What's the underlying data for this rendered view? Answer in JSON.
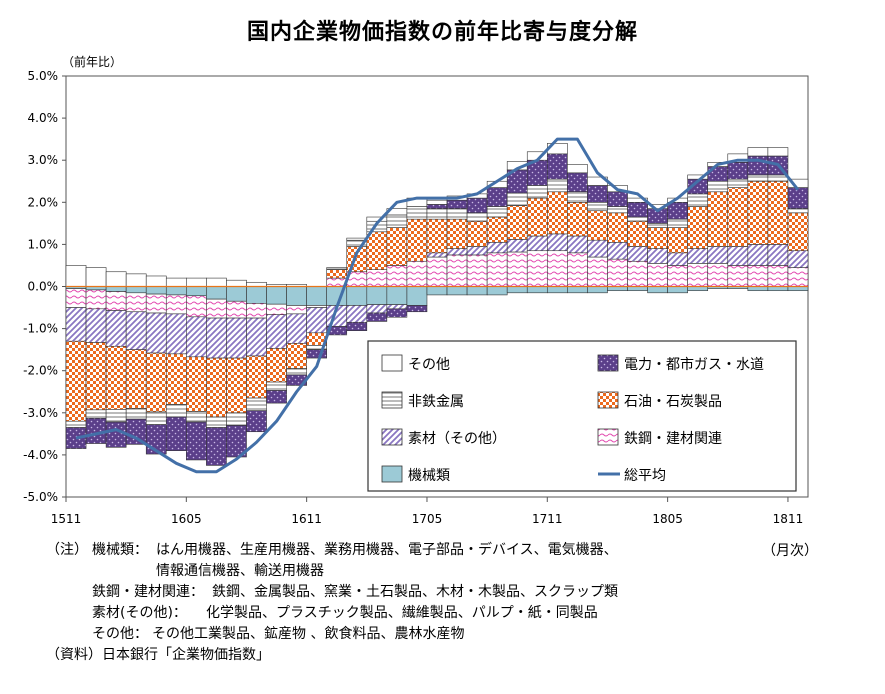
{
  "title": "国内企業物価指数の前年比寄与度分解",
  "colors": {
    "machinery": "#9ccad6",
    "steel_bg": "#ffffff",
    "steel_fg": "#e34ab0",
    "materials_bg": "#ffffff",
    "materials_fg": "#8a76c2",
    "oil_bg": "#ffffff",
    "oil_fg": "#ec6a1e",
    "nonferrous_bg": "#ffffff",
    "nonferrous_fg": "#777777",
    "electric_bg": "#5b3f8a",
    "electric_fg": "#c9b8e6",
    "other": "#ffffff",
    "total_line": "#4370a8"
  },
  "chart_data": {
    "type": "bar",
    "stacked": true,
    "ylabel": "（前年比）",
    "xlabel": "（月次）",
    "ylim": [
      -5.0,
      5.0
    ],
    "yticks": [
      "5.0%",
      "4.0%",
      "3.0%",
      "2.0%",
      "1.0%",
      "0.0%",
      "-1.0%",
      "-2.0%",
      "-3.0%",
      "-4.0%",
      "-5.0%"
    ],
    "ytick_values": [
      5,
      4,
      3,
      2,
      1,
      0,
      -1,
      -2,
      -3,
      -4,
      -5
    ],
    "xtick_labels": [
      "1511",
      "1605",
      "1611",
      "1705",
      "1711",
      "1805",
      "1811"
    ],
    "xtick_indices": [
      0,
      6,
      12,
      18,
      24,
      30,
      36
    ],
    "categories": [
      "1511",
      "1512",
      "1601",
      "1602",
      "1603",
      "1604",
      "1605",
      "1606",
      "1607",
      "1608",
      "1609",
      "1610",
      "1611",
      "1612",
      "1701",
      "1702",
      "1703",
      "1704",
      "1705",
      "1706",
      "1707",
      "1708",
      "1709",
      "1710",
      "1711",
      "1712",
      "1801",
      "1802",
      "1803",
      "1804",
      "1805",
      "1806",
      "1807",
      "1808",
      "1809",
      "1810",
      "1811"
    ],
    "grid": false,
    "legend_position": "lower-right",
    "series": [
      {
        "key": "machinery",
        "name": "機械類",
        "values": [
          -0.05,
          -0.08,
          -0.12,
          -0.15,
          -0.18,
          -0.2,
          -0.22,
          -0.3,
          -0.35,
          -0.4,
          -0.42,
          -0.45,
          -0.45,
          -0.45,
          -0.45,
          -0.43,
          -0.43,
          -0.45,
          -0.2,
          -0.2,
          -0.2,
          -0.2,
          -0.15,
          -0.15,
          -0.15,
          -0.15,
          -0.15,
          -0.1,
          -0.1,
          -0.15,
          -0.15,
          -0.1,
          -0.05,
          -0.05,
          -0.1,
          -0.1,
          -0.1
        ]
      },
      {
        "key": "steel",
        "name": "鉄鋼・建材関連",
        "values": [
          -0.45,
          -0.45,
          -0.45,
          -0.45,
          -0.45,
          -0.45,
          -0.5,
          -0.45,
          -0.4,
          -0.35,
          -0.25,
          -0.2,
          -0.05,
          0.2,
          0.35,
          0.4,
          0.5,
          0.6,
          0.7,
          0.75,
          0.75,
          0.8,
          0.82,
          0.85,
          0.85,
          0.8,
          0.7,
          0.65,
          0.6,
          0.55,
          0.5,
          0.55,
          0.55,
          0.5,
          0.5,
          0.5,
          0.45
        ]
      },
      {
        "key": "materials",
        "name": "素材（その他）",
        "values": [
          -0.8,
          -0.8,
          -0.85,
          -0.9,
          -0.95,
          -0.95,
          -0.95,
          -0.95,
          -0.95,
          -0.9,
          -0.8,
          -0.7,
          -0.6,
          -0.5,
          -0.4,
          -0.2,
          -0.1,
          0.0,
          0.1,
          0.15,
          0.2,
          0.25,
          0.3,
          0.35,
          0.4,
          0.4,
          0.4,
          0.4,
          0.35,
          0.35,
          0.3,
          0.35,
          0.4,
          0.45,
          0.5,
          0.5,
          0.4
        ]
      },
      {
        "key": "oil",
        "name": "石油・石炭製品",
        "values": [
          -1.9,
          -1.6,
          -1.5,
          -1.4,
          -1.4,
          -1.2,
          -1.3,
          -1.4,
          -1.3,
          -1.0,
          -0.8,
          -0.6,
          -0.3,
          0.2,
          0.6,
          0.9,
          0.9,
          1.0,
          0.8,
          0.7,
          0.6,
          0.6,
          0.8,
          0.9,
          1.0,
          0.8,
          0.7,
          0.7,
          0.6,
          0.5,
          0.6,
          1.0,
          1.3,
          1.4,
          1.5,
          1.5,
          0.9
        ]
      },
      {
        "key": "nonferrous",
        "name": "非鉄金属",
        "values": [
          -0.15,
          -0.2,
          -0.3,
          -0.25,
          -0.3,
          -0.3,
          -0.25,
          -0.25,
          -0.3,
          -0.3,
          -0.2,
          -0.15,
          -0.1,
          0.05,
          0.15,
          0.25,
          0.3,
          0.3,
          0.25,
          0.25,
          0.2,
          0.25,
          0.3,
          0.3,
          0.3,
          0.25,
          0.2,
          0.15,
          0.1,
          0.1,
          0.2,
          0.3,
          0.25,
          0.2,
          0.15,
          0.15,
          0.1
        ]
      },
      {
        "key": "electric",
        "name": "電力・都市ガス・水道",
        "values": [
          -0.5,
          -0.6,
          -0.6,
          -0.6,
          -0.7,
          -0.8,
          -0.9,
          -0.9,
          -0.75,
          -0.5,
          -0.3,
          -0.25,
          -0.2,
          -0.2,
          -0.2,
          -0.2,
          -0.2,
          -0.15,
          0.1,
          0.2,
          0.35,
          0.45,
          0.55,
          0.6,
          0.6,
          0.45,
          0.4,
          0.35,
          0.35,
          0.35,
          0.4,
          0.35,
          0.35,
          0.4,
          0.45,
          0.45,
          0.5
        ]
      },
      {
        "key": "other",
        "name": "その他",
        "values": [
          0.5,
          0.45,
          0.35,
          0.3,
          0.25,
          0.2,
          0.2,
          0.2,
          0.15,
          0.1,
          0.05,
          0.05,
          0.0,
          0.0,
          0.05,
          0.1,
          0.15,
          0.2,
          0.1,
          0.1,
          0.1,
          0.15,
          0.2,
          0.2,
          0.25,
          0.2,
          0.2,
          0.15,
          0.1,
          0.1,
          0.1,
          0.1,
          0.1,
          0.2,
          0.2,
          0.2,
          0.2
        ]
      }
    ],
    "total": {
      "key": "total",
      "name": "総平均",
      "values": [
        -3.6,
        -3.5,
        -3.4,
        -3.6,
        -3.9,
        -4.2,
        -4.4,
        -4.4,
        -4.1,
        -3.7,
        -3.2,
        -2.5,
        -1.9,
        -0.5,
        0.8,
        1.5,
        2.0,
        2.1,
        2.1,
        2.1,
        2.2,
        2.5,
        2.8,
        3.0,
        3.5,
        3.5,
        2.7,
        2.3,
        2.2,
        1.8,
        2.1,
        2.5,
        2.9,
        3.0,
        3.0,
        2.9,
        2.3
      ]
    }
  },
  "legend": {
    "items": [
      {
        "key": "other",
        "label": "その他"
      },
      {
        "key": "electric",
        "label": "電力・都市ガス・水道"
      },
      {
        "key": "nonferrous",
        "label": "非鉄金属"
      },
      {
        "key": "oil",
        "label": "石油・石炭製品"
      },
      {
        "key": "materials",
        "label": "素材（その他）"
      },
      {
        "key": "steel",
        "label": "鉄鋼・建材関連"
      },
      {
        "key": "machinery",
        "label": "機械類"
      },
      {
        "key": "total",
        "label": "総平均"
      }
    ]
  },
  "notes": {
    "note_prefix": "（注）",
    "rows": [
      {
        "head": "機械類：",
        "body": "はん用機器、生産用機器、業務用機器、電子部品・デバイス、電気機器、"
      },
      {
        "head": "",
        "body": "情報通信機器、輸送用機器"
      },
      {
        "head": "鉄鋼・建材関連：",
        "body": "鉄鋼、金属製品、窯業・土石製品、木材・木製品、スクラップ類"
      },
      {
        "head": "素材(その他)：",
        "body": "化学製品、プラスチック製品、繊維製品、パルプ・紙・同製品"
      },
      {
        "head": "その他：",
        "body": "その他工業製品、鉱産物 、飲食料品、農林水産物"
      }
    ],
    "source": "（資料）日本銀行「企業物価指数」"
  }
}
